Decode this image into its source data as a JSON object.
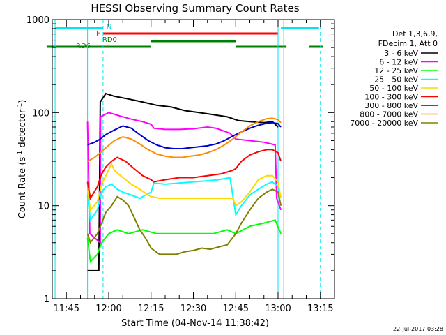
{
  "chart_data": {
    "type": "line",
    "title": "HESSI Observing Summary Count Rates",
    "xlabel": "Start Time (04-Nov-14 11:38:42)",
    "ylabel_main": "Count Rate (s",
    "ylabel_sup1": "-1",
    "ylabel_mid": " detector",
    "ylabel_sup2": "-1",
    "ylabel_end": ")",
    "yscale": "log",
    "ylim": [
      1,
      1000
    ],
    "xlim_min": [
      700,
      800
    ],
    "ytick_labels": [
      {
        "value": 1,
        "label": "1"
      },
      {
        "value": 10,
        "label": "10"
      },
      {
        "value": 100,
        "label": "100"
      },
      {
        "value": 1000,
        "label": "1000"
      }
    ],
    "xtick_labels": [
      {
        "value": 705,
        "label": "11:45"
      },
      {
        "value": 720,
        "label": "12:00"
      },
      {
        "value": 735,
        "label": "12:15"
      },
      {
        "value": 750,
        "label": "12:30"
      },
      {
        "value": 765,
        "label": "12:45"
      },
      {
        "value": 780,
        "label": "13:00"
      },
      {
        "value": 795,
        "label": "13:15"
      }
    ],
    "legend": {
      "header1": "Det 1,3,6,9,",
      "header2": "FDecim 1, Att 0",
      "placement": "right"
    },
    "series": [
      {
        "name": "3 - 6 keV",
        "color": "#000000",
        "points": [
          [
            712.5,
            2
          ],
          [
            716.5,
            2
          ],
          [
            717,
            130
          ],
          [
            719,
            160
          ],
          [
            722,
            150
          ],
          [
            727,
            140
          ],
          [
            732,
            130
          ],
          [
            737,
            120
          ],
          [
            742,
            115
          ],
          [
            747,
            105
          ],
          [
            752,
            100
          ],
          [
            757,
            95
          ],
          [
            762,
            90
          ],
          [
            766,
            82
          ],
          [
            770,
            80
          ],
          [
            775,
            78
          ],
          [
            778,
            80
          ],
          [
            780,
            70
          ]
        ]
      },
      {
        "name": "6 - 12 keV",
        "color": "#ff00ff",
        "points": [
          [
            712.5,
            80
          ],
          [
            713.3,
            5
          ],
          [
            717,
            4
          ],
          [
            717.1,
            90
          ],
          [
            720,
            100
          ],
          [
            724,
            92
          ],
          [
            728,
            85
          ],
          [
            732,
            80
          ],
          [
            735,
            75
          ],
          [
            736,
            68
          ],
          [
            740,
            66
          ],
          [
            745,
            66
          ],
          [
            750,
            67
          ],
          [
            755,
            70
          ],
          [
            758,
            68
          ],
          [
            763,
            60
          ],
          [
            765,
            52
          ],
          [
            770,
            50
          ],
          [
            775,
            48
          ],
          [
            779,
            45
          ],
          [
            779.5,
            12
          ],
          [
            781,
            9
          ]
        ]
      },
      {
        "name": "12 - 25 keV",
        "color": "#00ff00",
        "points": [
          [
            712.5,
            4.5
          ],
          [
            713.5,
            2.5
          ],
          [
            716,
            3
          ],
          [
            717.5,
            4
          ],
          [
            720,
            5
          ],
          [
            723,
            5.5
          ],
          [
            727,
            5
          ],
          [
            732,
            5.5
          ],
          [
            737,
            5
          ],
          [
            742,
            5
          ],
          [
            747,
            5
          ],
          [
            752,
            5
          ],
          [
            757,
            5
          ],
          [
            762,
            5.5
          ],
          [
            765,
            5
          ],
          [
            770,
            6
          ],
          [
            775,
            6.5
          ],
          [
            779,
            7
          ],
          [
            781,
            5
          ]
        ]
      },
      {
        "name": "25 - 50 keV",
        "color": "#00ffff",
        "points": [
          [
            712.5,
            13
          ],
          [
            713.5,
            7
          ],
          [
            716,
            9
          ],
          [
            717.5,
            14
          ],
          [
            719,
            16
          ],
          [
            721,
            17
          ],
          [
            723,
            15
          ],
          [
            725,
            14
          ],
          [
            728,
            13
          ],
          [
            731,
            12
          ],
          [
            735,
            14
          ],
          [
            736,
            17.5
          ],
          [
            740,
            17
          ],
          [
            745,
            17.5
          ],
          [
            750,
            18
          ],
          [
            755,
            18.5
          ],
          [
            759,
            19
          ],
          [
            763,
            20
          ],
          [
            765,
            8
          ],
          [
            767,
            10
          ],
          [
            770,
            13
          ],
          [
            773,
            15
          ],
          [
            776,
            17
          ],
          [
            778,
            18
          ],
          [
            780,
            16
          ],
          [
            781,
            12
          ]
        ]
      },
      {
        "name": "50 - 100 keV",
        "color": "#ffd700",
        "points": [
          [
            712.5,
            15
          ],
          [
            713.5,
            9
          ],
          [
            716,
            11
          ],
          [
            717.5,
            17
          ],
          [
            719,
            21
          ],
          [
            721,
            28
          ],
          [
            722,
            24
          ],
          [
            725,
            20
          ],
          [
            728,
            17
          ],
          [
            731,
            15
          ],
          [
            734,
            13
          ],
          [
            735,
            12.5
          ],
          [
            738,
            12
          ],
          [
            742,
            12
          ],
          [
            746,
            12
          ],
          [
            750,
            12
          ],
          [
            755,
            12
          ],
          [
            760,
            12
          ],
          [
            764,
            12
          ],
          [
            765,
            10
          ],
          [
            767,
            11
          ],
          [
            770,
            14
          ],
          [
            773,
            19
          ],
          [
            776,
            21
          ],
          [
            778,
            21
          ],
          [
            780,
            18
          ],
          [
            781,
            12
          ]
        ]
      },
      {
        "name": "100 - 300 keV",
        "color": "#ff0000",
        "points": [
          [
            712.5,
            18
          ],
          [
            713.5,
            12
          ],
          [
            716,
            16
          ],
          [
            717.5,
            22
          ],
          [
            719,
            26
          ],
          [
            721,
            30
          ],
          [
            723,
            33
          ],
          [
            726,
            30
          ],
          [
            729,
            25
          ],
          [
            732,
            21
          ],
          [
            735,
            19
          ],
          [
            736,
            18
          ],
          [
            740,
            19
          ],
          [
            745,
            20
          ],
          [
            750,
            20
          ],
          [
            755,
            21
          ],
          [
            760,
            22
          ],
          [
            764,
            24
          ],
          [
            765,
            25
          ],
          [
            767,
            30
          ],
          [
            770,
            35
          ],
          [
            773,
            38
          ],
          [
            776,
            40
          ],
          [
            778,
            40
          ],
          [
            780,
            37
          ],
          [
            781,
            30
          ]
        ]
      },
      {
        "name": "300 - 800 keV",
        "color": "#0000cd",
        "points": [
          [
            712.5,
            45
          ],
          [
            715,
            48
          ],
          [
            717,
            52
          ],
          [
            719,
            58
          ],
          [
            722,
            65
          ],
          [
            725,
            72
          ],
          [
            728,
            68
          ],
          [
            731,
            58
          ],
          [
            734,
            50
          ],
          [
            737,
            45
          ],
          [
            740,
            42
          ],
          [
            743,
            41
          ],
          [
            746,
            41
          ],
          [
            749,
            42
          ],
          [
            752,
            43
          ],
          [
            755,
            44
          ],
          [
            758,
            46
          ],
          [
            761,
            50
          ],
          [
            764,
            56
          ],
          [
            767,
            62
          ],
          [
            770,
            68
          ],
          [
            773,
            73
          ],
          [
            776,
            77
          ],
          [
            778,
            78
          ],
          [
            780,
            76
          ],
          [
            781,
            70
          ]
        ]
      },
      {
        "name": "800 - 7000 keV",
        "color": "#ff8c00",
        "points": [
          [
            712.5,
            30
          ],
          [
            715,
            33
          ],
          [
            717,
            37
          ],
          [
            719,
            42
          ],
          [
            722,
            50
          ],
          [
            725,
            55
          ],
          [
            728,
            52
          ],
          [
            731,
            46
          ],
          [
            734,
            40
          ],
          [
            737,
            36
          ],
          [
            740,
            34
          ],
          [
            743,
            33
          ],
          [
            746,
            33
          ],
          [
            749,
            34
          ],
          [
            752,
            35
          ],
          [
            755,
            37
          ],
          [
            758,
            40
          ],
          [
            761,
            45
          ],
          [
            764,
            52
          ],
          [
            767,
            62
          ],
          [
            770,
            72
          ],
          [
            773,
            80
          ],
          [
            776,
            86
          ],
          [
            778,
            87
          ],
          [
            780,
            84
          ],
          [
            781,
            78
          ]
        ]
      },
      {
        "name": "7000 - 20000 keV",
        "color": "#808000",
        "points": [
          [
            712.5,
            5
          ],
          [
            713.5,
            4
          ],
          [
            716,
            5
          ],
          [
            717.5,
            6.5
          ],
          [
            719,
            8.5
          ],
          [
            721,
            10
          ],
          [
            723,
            12.5
          ],
          [
            725,
            11.5
          ],
          [
            727,
            10
          ],
          [
            729,
            7.5
          ],
          [
            731,
            5.5
          ],
          [
            733,
            4.5
          ],
          [
            735,
            3.5
          ],
          [
            738,
            3
          ],
          [
            741,
            3
          ],
          [
            744,
            3
          ],
          [
            747,
            3.2
          ],
          [
            750,
            3.3
          ],
          [
            753,
            3.5
          ],
          [
            756,
            3.4
          ],
          [
            759,
            3.6
          ],
          [
            762,
            3.8
          ],
          [
            765,
            5
          ],
          [
            767,
            6.5
          ],
          [
            770,
            9
          ],
          [
            773,
            12
          ],
          [
            776,
            14
          ],
          [
            778,
            15
          ],
          [
            780,
            14
          ],
          [
            781,
            10
          ]
        ]
      }
    ],
    "flags": [
      {
        "label": "N",
        "color": "#00e5ee",
        "segments": [
          [
            701,
            718
          ],
          [
            781,
            794.5
          ]
        ]
      },
      {
        "label": "F",
        "color": "#ff0000",
        "segments": [
          [
            718,
            780
          ]
        ]
      },
      {
        "label": "RD0",
        "color": "#008000",
        "segments": [
          [
            735,
            765
          ]
        ]
      },
      {
        "label": "RD6",
        "color": "#008000",
        "segments": [
          [
            698,
            735
          ],
          [
            765,
            783
          ],
          [
            791,
            796
          ]
        ]
      }
    ],
    "vlines": [
      {
        "x": 701,
        "color": "#00e5ee",
        "style": "solid"
      },
      {
        "x": 712.5,
        "color": "#00e5ee",
        "style": "solid"
      },
      {
        "x": 718,
        "color": "#00e5ee",
        "style": "dashed"
      },
      {
        "x": 780,
        "color": "#00e5ee",
        "style": "solid"
      },
      {
        "x": 782,
        "color": "#00e5ee",
        "style": "solid"
      },
      {
        "x": 795,
        "color": "#00e5ee",
        "style": "dashed"
      }
    ],
    "footer_date": "22-Jul-2017 03:28"
  }
}
